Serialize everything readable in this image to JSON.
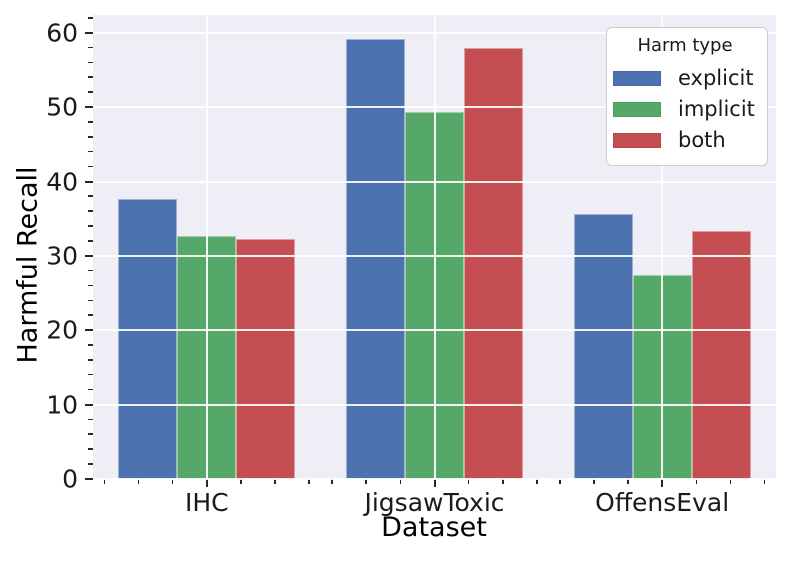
{
  "chart_data": {
    "type": "bar",
    "title": "",
    "xlabel": "Dataset",
    "ylabel": "Harmful Recall",
    "categories": [
      "IHC",
      "JigsawToxic",
      "OffensEval"
    ],
    "series": [
      {
        "name": "explicit",
        "color": "#4c72b0",
        "values": [
          37.6,
          59.2,
          35.6
        ]
      },
      {
        "name": "implicit",
        "color": "#55a868",
        "values": [
          32.7,
          49.4,
          27.5
        ]
      },
      {
        "name": "both",
        "color": "#c44e52",
        "values": [
          32.3,
          57.9,
          33.3
        ]
      }
    ],
    "legend": {
      "title": "Harm type",
      "position": "upper right"
    },
    "ylim": [
      0,
      62.4
    ],
    "yticks": [
      0,
      10,
      20,
      30,
      40,
      50,
      60
    ],
    "y_minor_step": 2,
    "grid": true,
    "grid_on_top": true,
    "colors": {
      "axes_background": "#efeef6",
      "grid": "#ffffff",
      "figure_background": "#ffffff",
      "text": "#262626"
    }
  }
}
